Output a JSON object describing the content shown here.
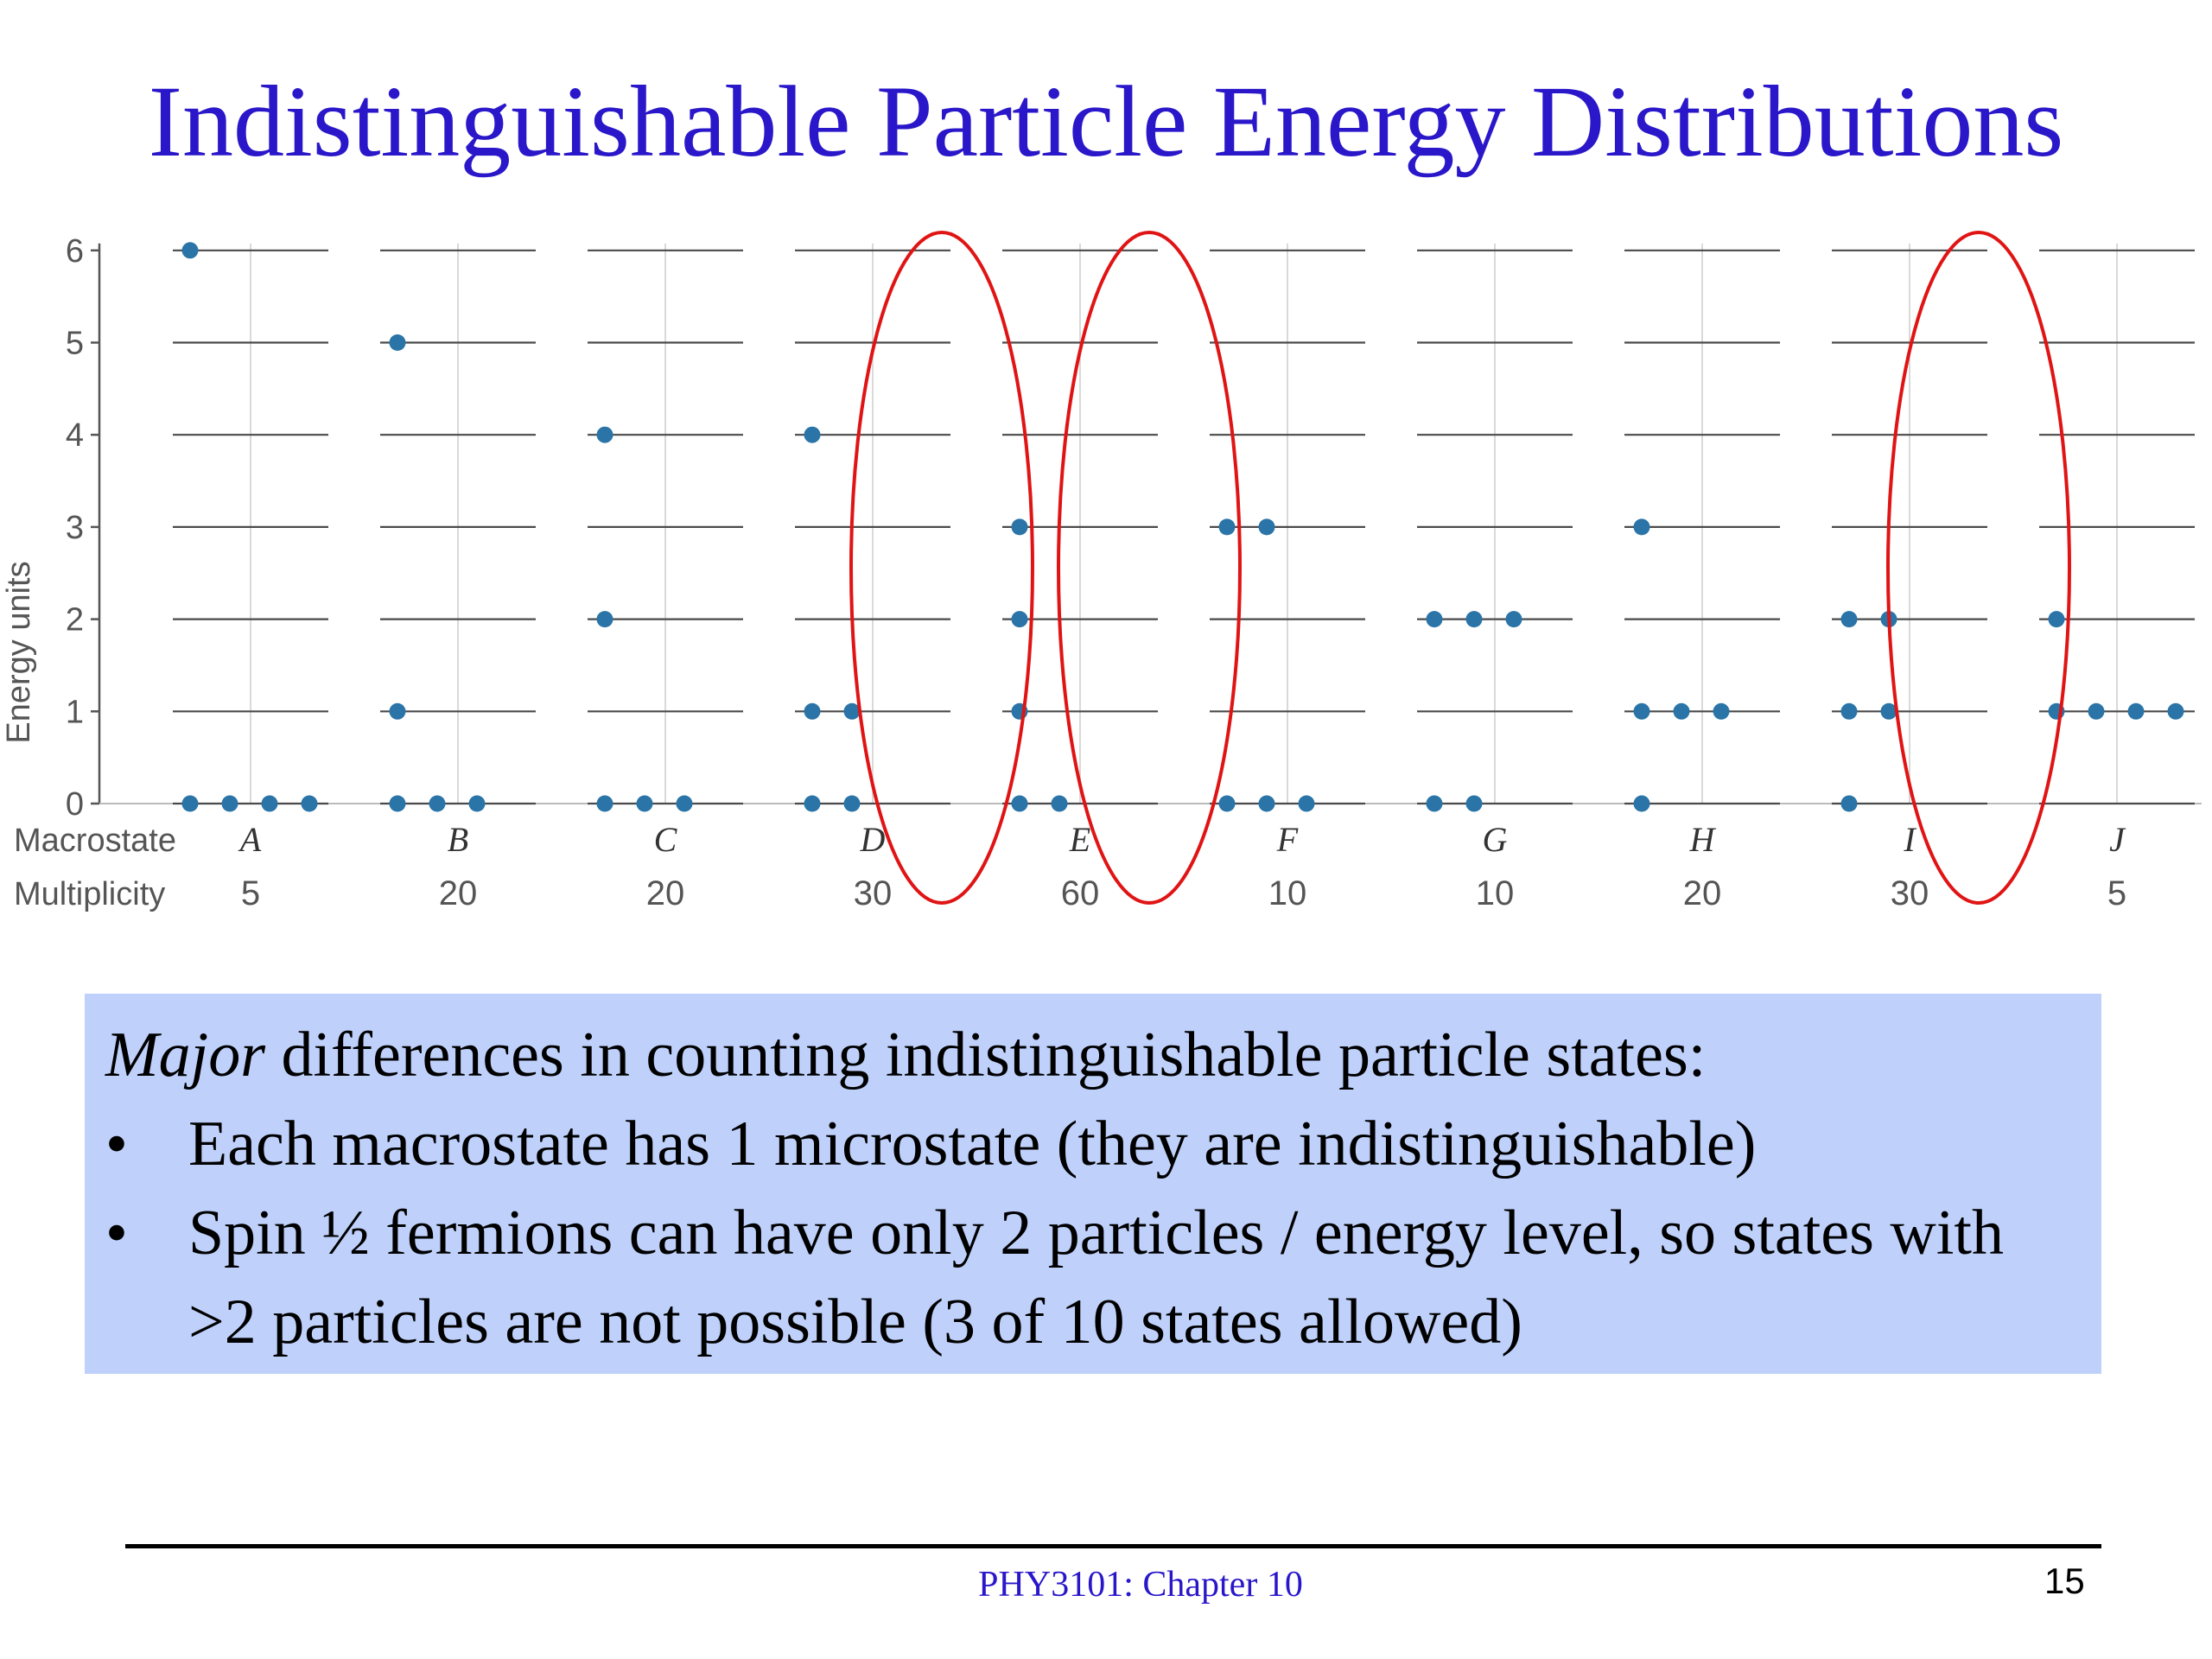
{
  "slide": {
    "title": "Indistinguishable Particle Energy Distributions",
    "footer_course": "PHY3101: Chapter 10",
    "page_number": "15"
  },
  "notes": {
    "intro_emphasis": "Major",
    "intro_rest": " differences in counting indistinguishable particle states:",
    "bullet_symbol": "•",
    "bullets": [
      "Each macrostate has 1 microstate (they are indistinguishable)",
      "Spin ½ fermions can have only 2 particles / energy level, so states with >2 particles are not possible (3 of 10 states allowed)"
    ]
  },
  "chart_data": {
    "type": "scatter",
    "ylabel": "Energy units",
    "yticks": [
      0,
      1,
      2,
      3,
      4,
      5,
      6
    ],
    "ylim": [
      0,
      6
    ],
    "row_labels": {
      "macrostate": "Macrostate",
      "multiplicity": "Multiplicity"
    },
    "point_color": "#2a74a7",
    "highlight_color": "#e01414",
    "macrostates": [
      {
        "name": "A",
        "multiplicity": "5",
        "occupancy": [
          4,
          0,
          0,
          0,
          0,
          0,
          1
        ],
        "highlighted": false
      },
      {
        "name": "B",
        "multiplicity": "20",
        "occupancy": [
          3,
          1,
          0,
          0,
          0,
          1,
          0
        ],
        "highlighted": false
      },
      {
        "name": "C",
        "multiplicity": "20",
        "occupancy": [
          3,
          0,
          1,
          0,
          1,
          0,
          0
        ],
        "highlighted": false
      },
      {
        "name": "D",
        "multiplicity": "30",
        "occupancy": [
          2,
          2,
          0,
          0,
          1,
          0,
          0
        ],
        "highlighted": true
      },
      {
        "name": "E",
        "multiplicity": "60",
        "occupancy": [
          2,
          1,
          1,
          1,
          0,
          0,
          0
        ],
        "highlighted": true
      },
      {
        "name": "F",
        "multiplicity": "10",
        "occupancy": [
          3,
          0,
          0,
          2,
          0,
          0,
          0
        ],
        "highlighted": false
      },
      {
        "name": "G",
        "multiplicity": "10",
        "occupancy": [
          2,
          0,
          3,
          0,
          0,
          0,
          0
        ],
        "highlighted": false
      },
      {
        "name": "H",
        "multiplicity": "20",
        "occupancy": [
          1,
          3,
          0,
          1,
          0,
          0,
          0
        ],
        "highlighted": false
      },
      {
        "name": "I",
        "multiplicity": "30",
        "occupancy": [
          1,
          2,
          2,
          0,
          0,
          0,
          0
        ],
        "highlighted": true
      },
      {
        "name": "J",
        "multiplicity": "5",
        "occupancy": [
          0,
          4,
          1,
          0,
          0,
          0,
          0
        ],
        "highlighted": false
      }
    ]
  }
}
